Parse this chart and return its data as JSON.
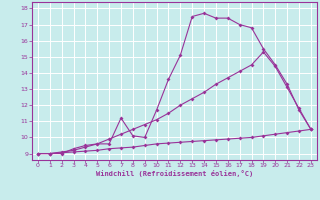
{
  "xlabel": "Windchill (Refroidissement éolien,°C)",
  "bg_color": "#c8ecec",
  "line_color": "#993399",
  "grid_color": "#ffffff",
  "xlim": [
    -0.5,
    23.5
  ],
  "ylim": [
    8.6,
    18.4
  ],
  "xticks": [
    0,
    1,
    2,
    3,
    4,
    5,
    6,
    7,
    8,
    9,
    10,
    11,
    12,
    13,
    14,
    15,
    16,
    17,
    18,
    19,
    20,
    21,
    22,
    23
  ],
  "yticks": [
    9,
    10,
    11,
    12,
    13,
    14,
    15,
    16,
    17,
    18
  ],
  "line1_x": [
    0,
    1,
    2,
    3,
    4,
    5,
    6,
    7,
    8,
    9,
    10,
    11,
    12,
    13,
    14,
    15,
    16,
    17,
    18,
    19,
    20,
    21,
    22,
    23
  ],
  "line1_y": [
    9.0,
    9.0,
    9.0,
    9.3,
    9.5,
    9.6,
    9.6,
    11.2,
    10.1,
    10.0,
    11.7,
    13.6,
    15.1,
    17.5,
    17.7,
    17.4,
    17.4,
    17.0,
    16.8,
    15.5,
    14.5,
    13.3,
    11.7,
    10.5
  ],
  "line2_x": [
    0,
    1,
    2,
    3,
    4,
    5,
    6,
    7,
    8,
    9,
    10,
    11,
    12,
    13,
    14,
    15,
    16,
    17,
    18,
    19,
    20,
    21,
    22,
    23
  ],
  "line2_y": [
    9.0,
    9.0,
    9.1,
    9.2,
    9.4,
    9.6,
    9.9,
    10.2,
    10.5,
    10.8,
    11.1,
    11.5,
    12.0,
    12.4,
    12.8,
    13.3,
    13.7,
    14.1,
    14.5,
    15.3,
    14.4,
    13.1,
    11.8,
    10.5
  ],
  "line3_x": [
    0,
    1,
    2,
    3,
    4,
    5,
    6,
    7,
    8,
    9,
    10,
    11,
    12,
    13,
    14,
    15,
    16,
    17,
    18,
    19,
    20,
    21,
    22,
    23
  ],
  "line3_y": [
    9.0,
    9.0,
    9.05,
    9.1,
    9.15,
    9.2,
    9.3,
    9.35,
    9.4,
    9.5,
    9.6,
    9.65,
    9.7,
    9.75,
    9.8,
    9.85,
    9.9,
    9.95,
    10.0,
    10.1,
    10.2,
    10.3,
    10.4,
    10.5
  ]
}
